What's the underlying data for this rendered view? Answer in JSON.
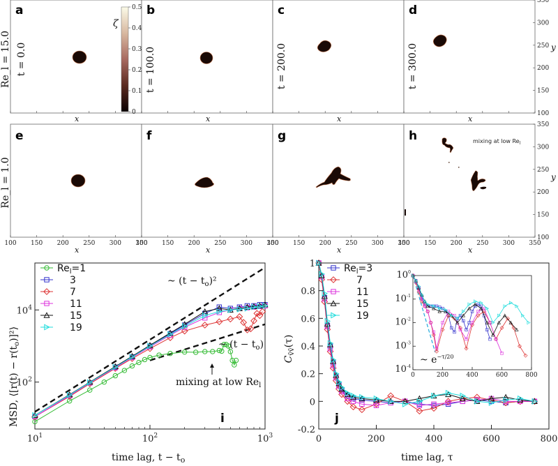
{
  "chart_data": [
    {
      "type": "heatmap",
      "title": "droplet snapshots",
      "row_labels": [
        "Re_l = 15.0",
        "Re_l = 1.0"
      ],
      "time_labels": [
        "t = 0.0",
        "t = 100.0",
        "t = 200.0",
        "t = 300.0"
      ],
      "panels": [
        {
          "letter": "a",
          "row": 0,
          "col": 0
        },
        {
          "letter": "b",
          "row": 0,
          "col": 1
        },
        {
          "letter": "c",
          "row": 0,
          "col": 2
        },
        {
          "letter": "d",
          "row": 0,
          "col": 3
        },
        {
          "letter": "e",
          "row": 1,
          "col": 0
        },
        {
          "letter": "f",
          "row": 1,
          "col": 1
        },
        {
          "letter": "g",
          "row": 1,
          "col": 2
        },
        {
          "letter": "h",
          "row": 1,
          "col": 3
        }
      ],
      "colorbar": {
        "label": "ζ",
        "range": [
          0,
          0.5
        ],
        "ticks": [
          "0.5",
          "0.4",
          "0.3",
          "0.2",
          "0.1",
          "0"
        ]
      },
      "xlabel": "x",
      "ylabel": "y",
      "x_ticks": [
        "100",
        "150",
        "200",
        "250",
        "300",
        "350"
      ],
      "y_ticks": [
        "350",
        "300",
        "250",
        "200",
        "150",
        "100"
      ],
      "annotation": "mixing at low Re",
      "annotation_sub": "l"
    },
    {
      "type": "line",
      "panel_letter": "i",
      "xscale": "log",
      "yscale": "log",
      "xlim": [
        10,
        1000
      ],
      "ylim": [
        5,
        200000
      ],
      "xlabel": "time lag, t − t",
      "xlabel_sub": "o",
      "ylabel": "MSD, ⟨[r(t) − r(t",
      "ylabel_sub": "o",
      "ylabel_tail": ")]²⟩",
      "x_ticks": [
        {
          "base": "10",
          "exp": "1",
          "value": 10
        },
        {
          "base": "10",
          "exp": "2",
          "value": 100
        },
        {
          "base": "10",
          "exp": "3",
          "value": 1000
        }
      ],
      "y_ticks": [
        {
          "base": "10",
          "exp": "2",
          "value": 100
        },
        {
          "base": "10",
          "exp": "4",
          "value": 10000
        }
      ],
      "legend_prefix": "Re",
      "legend_prefix_sub": "l",
      "series": [
        {
          "name": "1",
          "color": "#33bb33",
          "marker": "circle",
          "x": [
            10,
            20,
            30,
            40,
            50,
            60,
            70,
            80,
            90,
            100,
            120,
            150,
            200,
            250,
            300,
            350,
            400,
            420,
            440,
            460,
            480,
            500,
            520,
            540,
            560
          ],
          "y": [
            8,
            30,
            60,
            100,
            150,
            210,
            280,
            350,
            420,
            480,
            560,
            620,
            680,
            670,
            700,
            700,
            750,
            720,
            1100,
            1100,
            1000,
            700,
            400,
            300,
            400
          ]
        },
        {
          "name": "3",
          "color": "#3333cc",
          "marker": "square",
          "x": [
            10,
            20,
            30,
            50,
            70,
            100,
            150,
            200,
            300,
            400,
            500,
            600,
            700,
            800,
            900,
            1000
          ],
          "y": [
            11,
            42,
            95,
            260,
            500,
            1000,
            2200,
            3800,
            8000,
            12000,
            11000,
            12000,
            13000,
            13000,
            14000,
            14000
          ]
        },
        {
          "name": "7",
          "color": "#dd3333",
          "marker": "diamond",
          "x": [
            10,
            20,
            30,
            50,
            70,
            100,
            150,
            200,
            300,
            400,
            500,
            600,
            650,
            700,
            750,
            800,
            850,
            900,
            950
          ],
          "y": [
            11,
            40,
            90,
            240,
            450,
            850,
            1700,
            2600,
            3800,
            4700,
            5600,
            6500,
            4500,
            2800,
            3000,
            5000,
            8000,
            7000,
            9000
          ]
        },
        {
          "name": "11",
          "color": "#dd33dd",
          "marker": "square",
          "x": [
            10,
            20,
            30,
            50,
            70,
            100,
            150,
            200,
            300,
            400,
            500,
            600,
            700,
            800,
            900,
            1000
          ],
          "y": [
            11,
            42,
            95,
            250,
            480,
            950,
            2000,
            3300,
            6000,
            8500,
            10000,
            11000,
            11500,
            12000,
            12500,
            13000
          ]
        },
        {
          "name": "15",
          "color": "#111111",
          "marker": "triangle",
          "x": [
            10,
            20,
            30,
            50,
            70,
            100,
            150,
            200,
            300,
            400,
            500,
            600,
            700,
            800,
            900,
            1000
          ],
          "y": [
            12,
            45,
            100,
            270,
            520,
            1050,
            2300,
            4000,
            9000,
            11000,
            10000,
            11000,
            12000,
            12500,
            13000,
            14000
          ]
        },
        {
          "name": "19",
          "color": "#22dddd",
          "marker": "triangle-right",
          "x": [
            10,
            20,
            30,
            50,
            70,
            100,
            150,
            200,
            300,
            400,
            500,
            600,
            700,
            800,
            900,
            1000
          ],
          "y": [
            12,
            44,
            98,
            260,
            500,
            1000,
            2100,
            3500,
            7000,
            9000,
            10000,
            10500,
            11000,
            12000,
            12500,
            13000
          ]
        }
      ],
      "guides": [
        {
          "label": "~ (t − t",
          "label_sub": "o",
          "label_tail": ")²",
          "slope": 2,
          "x": [
            10,
            1000
          ],
          "y": [
            15,
            150000
          ]
        },
        {
          "label": "~ (t − t",
          "label_sub": "o",
          "label_tail": ")",
          "slope": 1,
          "x": [
            100,
            1000
          ],
          "y": [
            400,
            4000
          ]
        }
      ],
      "annotation": "mixing at low Re",
      "annotation_sub": "l"
    },
    {
      "type": "line",
      "panel_letter": "j",
      "xlim": [
        0,
        800
      ],
      "ylim": [
        -0.2,
        1.0
      ],
      "xlabel": "time lag, τ",
      "ylabel": "C",
      "ylabel_sub": "v̄v̄",
      "ylabel_tail": "(τ)",
      "x_ticks": [
        "0",
        "200",
        "400",
        "600",
        "800"
      ],
      "y_ticks": [
        "1",
        "0.8",
        "0.6",
        "0.4",
        "0.2",
        "0",
        "-0.2"
      ],
      "legend_prefix": "Re",
      "legend_prefix_sub": "l",
      "series": [
        {
          "name": "3",
          "color": "#3333cc",
          "marker": "square",
          "x": [
            0,
            10,
            20,
            30,
            40,
            50,
            60,
            70,
            80,
            100,
            120,
            150,
            200,
            250,
            300,
            350,
            400,
            450,
            500,
            550,
            600,
            650,
            700,
            750
          ],
          "y": [
            1.0,
            0.9,
            0.75,
            0.55,
            0.4,
            0.28,
            0.18,
            0.12,
            0.08,
            0.04,
            0.02,
            0.01,
            0.0,
            -0.01,
            0.0,
            -0.02,
            -0.03,
            -0.02,
            0.0,
            0.01,
            0.0,
            -0.01,
            0.0,
            0.0
          ]
        },
        {
          "name": "7",
          "color": "#dd3333",
          "marker": "diamond",
          "x": [
            0,
            10,
            20,
            30,
            40,
            50,
            60,
            70,
            80,
            100,
            120,
            150,
            200,
            250,
            300,
            350,
            400,
            450,
            500,
            550,
            600,
            650,
            700,
            750
          ],
          "y": [
            1.0,
            0.88,
            0.72,
            0.52,
            0.36,
            0.24,
            0.15,
            0.09,
            0.05,
            0.0,
            -0.04,
            -0.06,
            -0.02,
            0.04,
            0.0,
            -0.07,
            -0.05,
            0.0,
            0.02,
            0.03,
            0.01,
            -0.01,
            0.0,
            0.0
          ]
        },
        {
          "name": "11",
          "color": "#dd33dd",
          "marker": "square",
          "x": [
            0,
            10,
            20,
            30,
            40,
            50,
            60,
            70,
            80,
            100,
            120,
            150,
            200,
            250,
            300,
            350,
            400,
            450,
            500,
            550,
            600,
            650,
            700,
            750
          ],
          "y": [
            1.0,
            0.9,
            0.74,
            0.54,
            0.38,
            0.26,
            0.17,
            0.11,
            0.07,
            0.02,
            0.0,
            -0.02,
            -0.03,
            -0.01,
            0.0,
            -0.03,
            -0.02,
            -0.01,
            0.0,
            0.01,
            0.02,
            0.0,
            0.0,
            0.0
          ]
        },
        {
          "name": "15",
          "color": "#111111",
          "marker": "triangle",
          "x": [
            0,
            10,
            20,
            30,
            40,
            50,
            60,
            70,
            80,
            100,
            120,
            150,
            200,
            250,
            300,
            350,
            400,
            450,
            500,
            550,
            600,
            650,
            700,
            750
          ],
          "y": [
            1.0,
            0.91,
            0.76,
            0.56,
            0.41,
            0.29,
            0.19,
            0.13,
            0.09,
            0.05,
            0.03,
            0.02,
            0.01,
            0.0,
            0.0,
            0.02,
            0.04,
            0.05,
            0.02,
            0.0,
            0.02,
            0.03,
            0.01,
            0.0
          ]
        },
        {
          "name": "19",
          "color": "#22dddd",
          "marker": "triangle-right",
          "x": [
            0,
            10,
            20,
            30,
            40,
            50,
            60,
            70,
            80,
            100,
            120,
            150,
            200,
            250,
            300,
            350,
            400,
            450,
            500,
            550,
            600,
            650,
            700,
            750
          ],
          "y": [
            1.0,
            0.92,
            0.78,
            0.58,
            0.42,
            0.3,
            0.2,
            0.14,
            0.1,
            0.06,
            0.04,
            0.03,
            0.02,
            0.0,
            -0.02,
            0.0,
            0.04,
            0.06,
            0.04,
            0.0,
            -0.01,
            0.01,
            0.02,
            0.0
          ]
        }
      ],
      "inset": {
        "yscale": "log",
        "xlim": [
          0,
          800
        ],
        "ylim": [
          0.0001,
          1
        ],
        "x_ticks": [
          "0",
          "200",
          "400",
          "600",
          "800"
        ],
        "y_ticks": [
          {
            "base": "10",
            "exp": "0",
            "value": 1
          },
          {
            "base": "10",
            "exp": "-1",
            "value": 0.1
          },
          {
            "base": "10",
            "exp": "-2",
            "value": 0.01
          },
          {
            "base": "10",
            "exp": "-3",
            "value": 0.001
          },
          {
            "base": "10",
            "exp": "-4",
            "value": 0.0001
          }
        ],
        "guide_label": "~ e",
        "guide_exp": "−τ/20",
        "guide": {
          "decay": 20,
          "x": [
            0,
            150
          ]
        },
        "series": [
          {
            "name": "3",
            "x": [
              0,
              20,
              40,
              60,
              80,
              100,
              120,
              140,
              160,
              180,
              200,
              220,
              240,
              260,
              280,
              300,
              320,
              340,
              360,
              380,
              400,
              420,
              440,
              460,
              480,
              500,
              520
            ],
            "y": [
              1,
              0.6,
              0.3,
              0.12,
              0.06,
              0.05,
              0.05,
              0.05,
              0.05,
              0.045,
              0.04,
              0.03,
              0.02,
              0.006,
              0.004,
              0.015,
              0.02,
              0.012,
              0.005,
              0.01,
              0.03,
              0.05,
              0.06,
              0.05,
              0.02,
              0.005,
              0.002
            ]
          },
          {
            "name": "7",
            "x": [
              0,
              20,
              40,
              60,
              80,
              100,
              120,
              140,
              160,
              200,
              240,
              280,
              320,
              360,
              400,
              440,
              480,
              520,
              560,
              600,
              640,
              680,
              720,
              760
            ],
            "y": [
              1,
              0.5,
              0.2,
              0.08,
              0.05,
              0.03,
              0.01,
              0.003,
              0.0006,
              0.005,
              0.02,
              0.015,
              0.006,
              0.0008,
              0.008,
              0.02,
              0.03,
              0.01,
              0.002,
              0.006,
              0.015,
              0.006,
              0.001,
              0.0004
            ]
          },
          {
            "name": "11",
            "x": [
              0,
              20,
              40,
              60,
              80,
              100,
              120,
              140,
              160,
              200,
              240,
              280,
              320,
              360,
              400,
              440,
              480,
              520,
              560,
              600
            ],
            "y": [
              1,
              0.55,
              0.25,
              0.1,
              0.05,
              0.03,
              0.01,
              0.004,
              0.0008,
              0.01,
              0.03,
              0.02,
              0.005,
              0.002,
              0.01,
              0.03,
              0.04,
              0.01,
              0.002,
              0.0005
            ]
          },
          {
            "name": "15",
            "x": [
              0,
              20,
              40,
              60,
              80,
              100,
              140,
              180,
              220,
              260,
              300,
              340,
              380,
              420,
              460,
              500,
              540,
              580,
              620,
              660,
              700
            ],
            "y": [
              1,
              0.6,
              0.3,
              0.15,
              0.08,
              0.05,
              0.04,
              0.03,
              0.03,
              0.02,
              0.01,
              0.02,
              0.04,
              0.06,
              0.04,
              0.01,
              0.003,
              0.01,
              0.02,
              0.01,
              0.005
            ]
          },
          {
            "name": "19",
            "x": [
              0,
              20,
              40,
              60,
              80,
              100,
              140,
              180,
              220,
              260,
              300,
              340,
              380,
              420,
              460,
              500,
              540,
              580,
              620,
              660,
              700,
              740,
              780
            ],
            "y": [
              1,
              0.6,
              0.35,
              0.15,
              0.08,
              0.06,
              0.05,
              0.04,
              0.035,
              0.02,
              0.015,
              0.03,
              0.06,
              0.08,
              0.07,
              0.04,
              0.01,
              0.02,
              0.05,
              0.07,
              0.05,
              0.02,
              0.01
            ]
          }
        ]
      }
    }
  ]
}
